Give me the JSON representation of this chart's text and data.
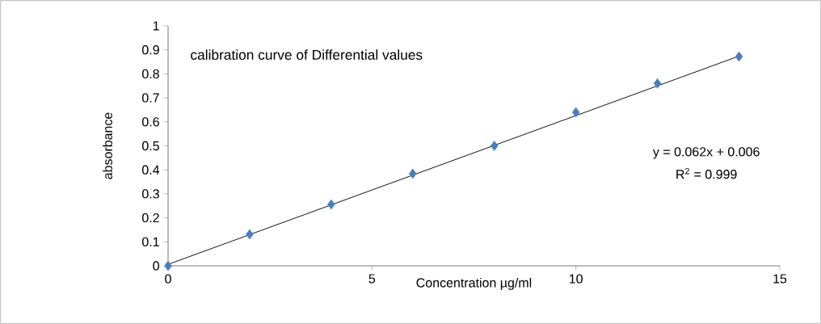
{
  "chart_data": {
    "type": "scatter",
    "title": "calibration curve of Differential values",
    "xlabel": "Concentration µg/ml",
    "ylabel": "absorbance",
    "annotations": [
      "y = 0.062x + 0.006",
      "R$^{2}$ = 0.999"
    ],
    "x": [
      0,
      2,
      4,
      6,
      8,
      10,
      12,
      14
    ],
    "series": [
      {
        "color": "#4a7ebb",
        "marker": "diamond",
        "values": [
          0,
          0.131,
          0.256,
          0.384,
          0.5,
          0.64,
          0.76,
          0.872
        ]
      },
      {
        "type": "line",
        "color": "#000000",
        "marker": "none",
        "x": [
          0,
          14
        ],
        "values": [
          0.006,
          0.874
        ]
      }
    ],
    "xlim": [
      0,
      15
    ],
    "ylim": [
      0,
      1
    ],
    "xticks": [
      0,
      5,
      10,
      15
    ],
    "yticks": [
      0,
      0.1,
      0.2,
      0.3,
      0.4,
      0.5,
      0.6,
      0.7,
      0.8,
      0.9,
      1
    ],
    "grid": false
  }
}
